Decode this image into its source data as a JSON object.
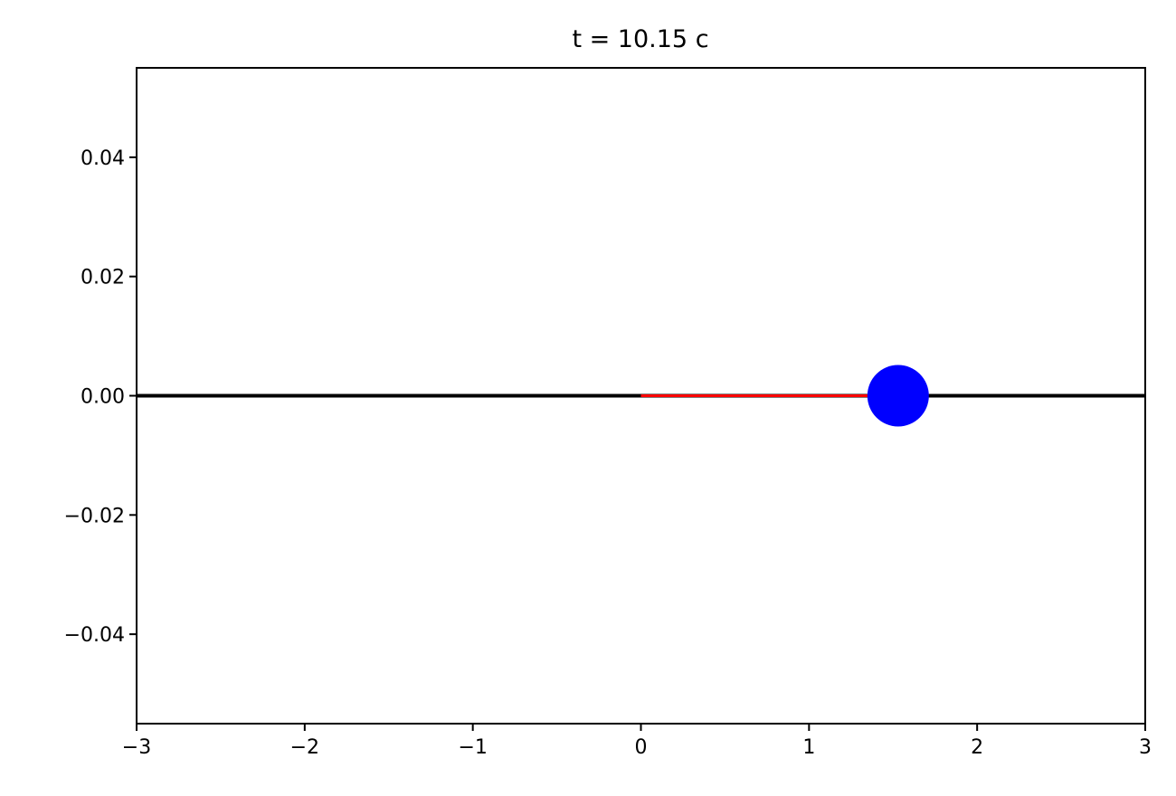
{
  "chart_data": {
    "type": "line",
    "title": "t = 10.15 c",
    "xlabel": "",
    "ylabel": "",
    "xlim": [
      -3,
      3
    ],
    "ylim": [
      -0.055,
      0.055
    ],
    "xticks": [
      -3,
      -2,
      -1,
      0,
      1,
      2,
      3
    ],
    "xtick_labels": [
      "−3",
      "−2",
      "−1",
      "0",
      "1",
      "2",
      "3"
    ],
    "yticks": [
      0.04,
      0.02,
      0.0,
      -0.02,
      -0.04
    ],
    "ytick_labels": [
      "0.04",
      "0.02",
      "0.00",
      "−0.02",
      "−0.04"
    ],
    "grid": false,
    "series": [
      {
        "kind": "line",
        "color": "#000000",
        "x": [
          -3,
          3
        ],
        "y": [
          0,
          0
        ]
      },
      {
        "kind": "line",
        "color": "#ff0000",
        "x": [
          0,
          1.53
        ],
        "y": [
          0,
          0
        ]
      },
      {
        "kind": "point",
        "color": "#0000ff",
        "x": [
          1.53
        ],
        "y": [
          0
        ]
      }
    ]
  }
}
